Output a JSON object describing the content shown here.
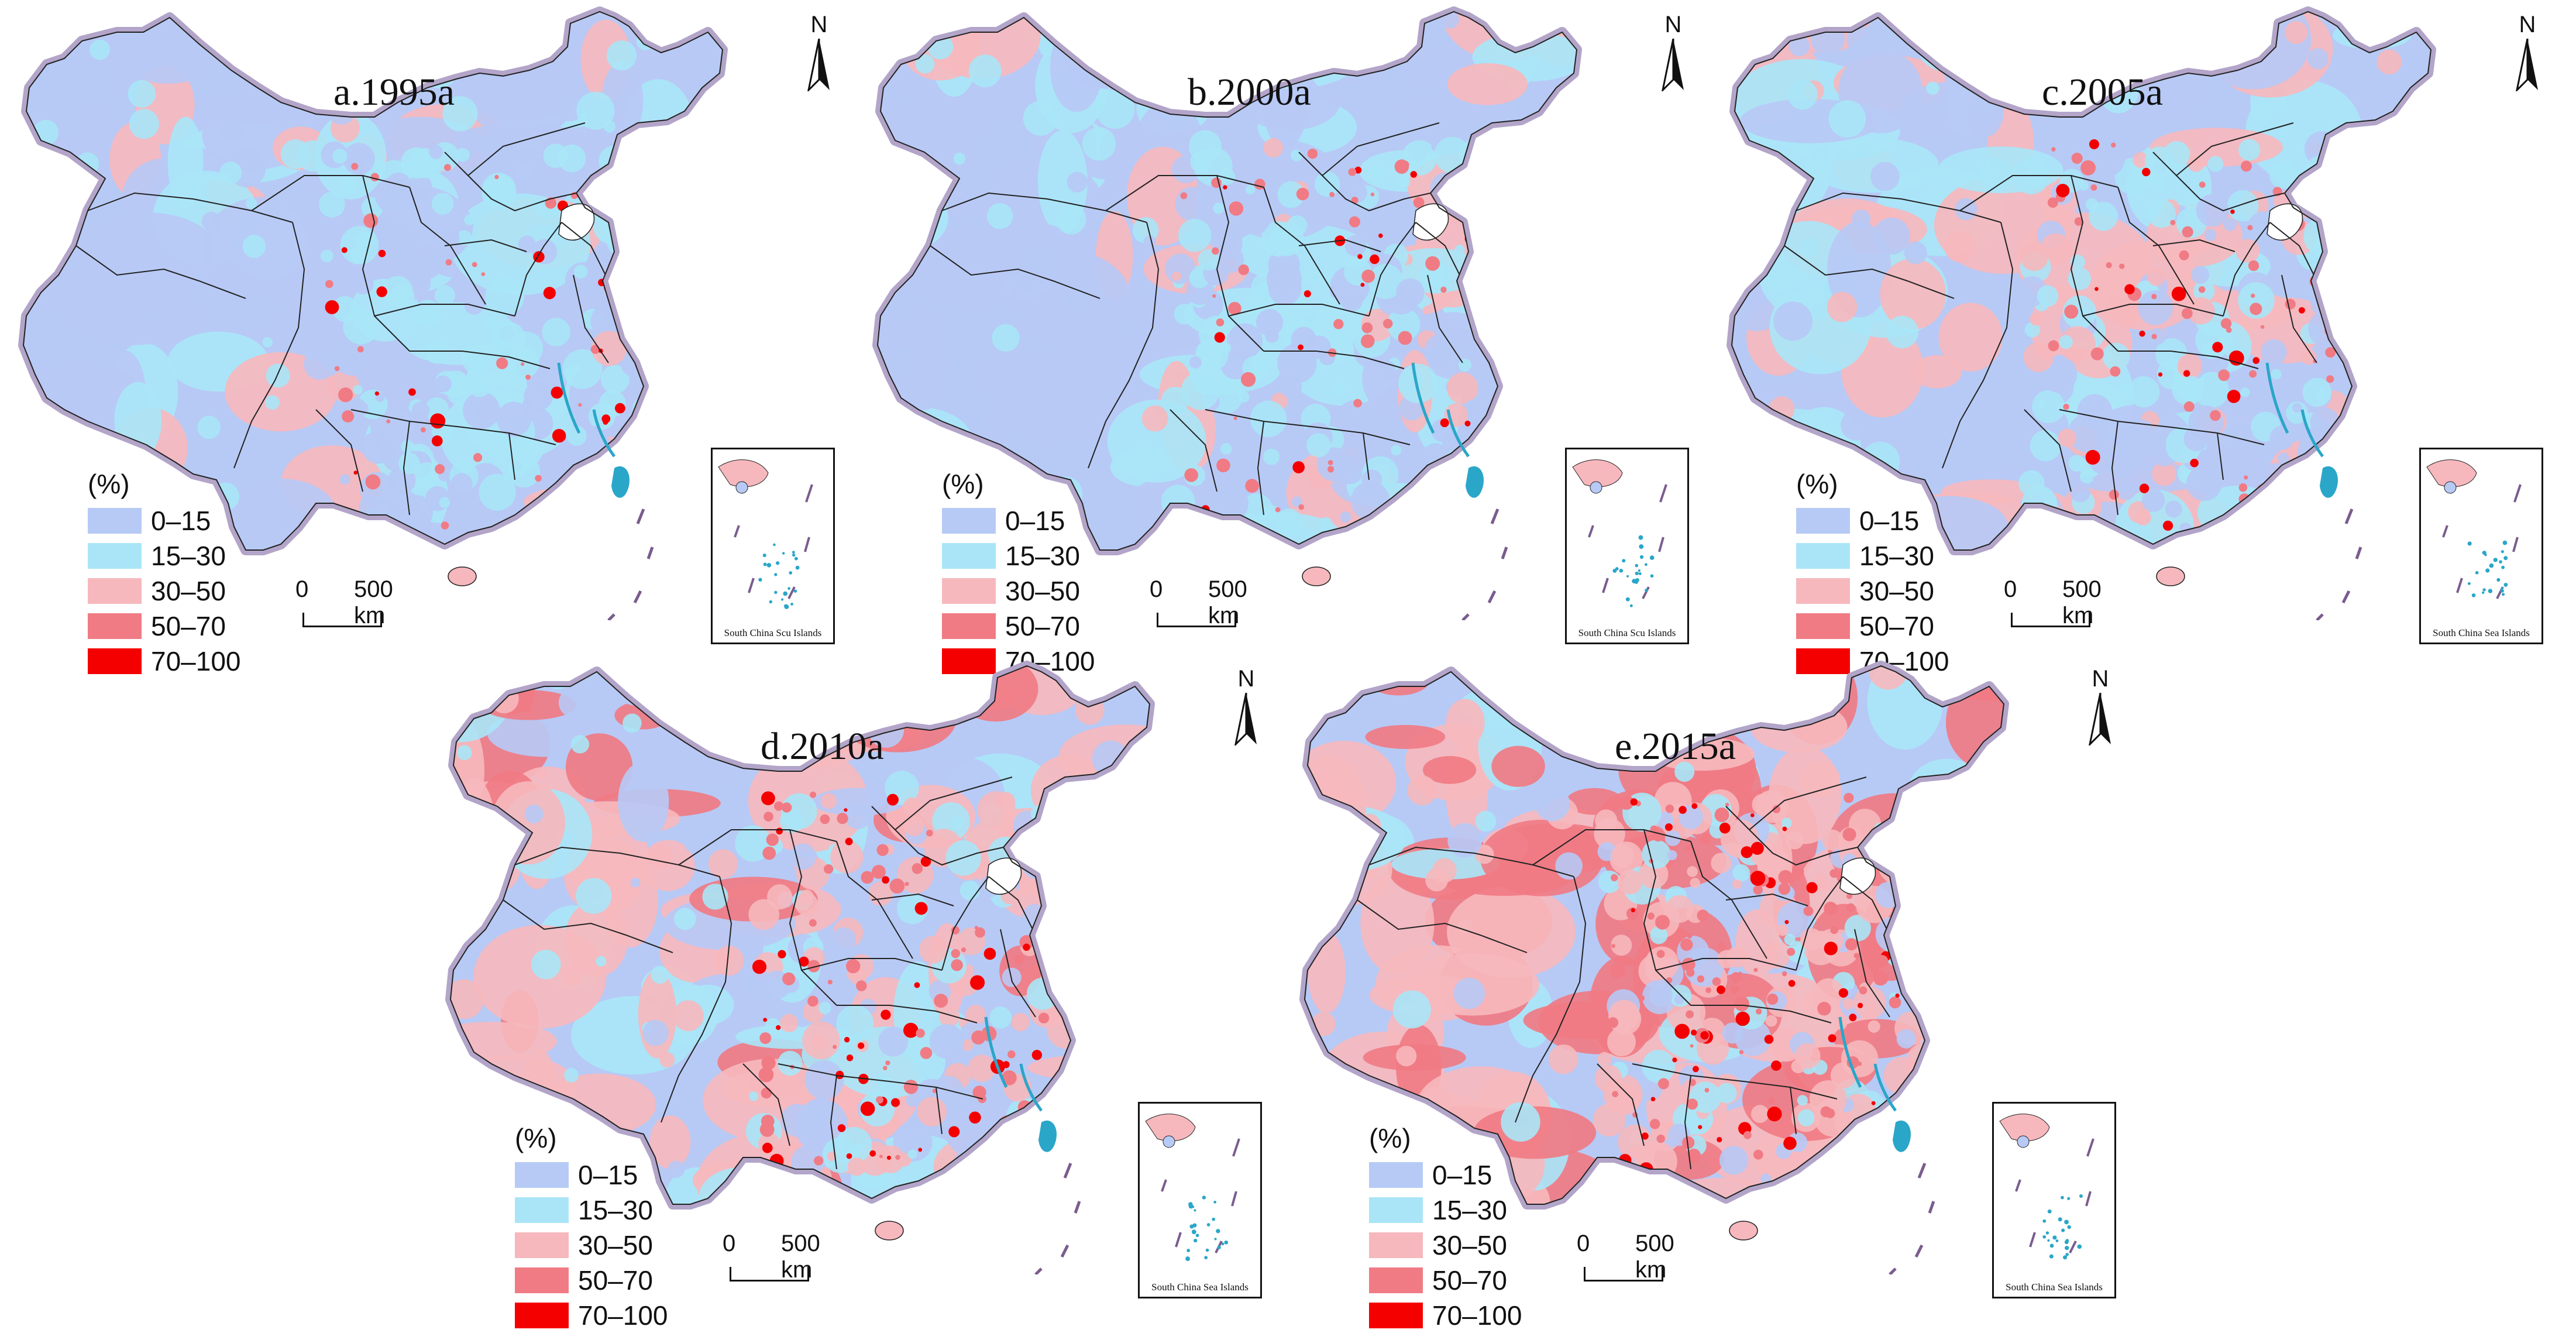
{
  "figure": {
    "panels": [
      {
        "id": "a",
        "title": "a.1995a",
        "inset_caption": "South China Scu Islands",
        "mix": 0.05,
        "reds": 0.02
      },
      {
        "id": "b",
        "title": "b.2000a",
        "inset_caption": "South China Scu Islands",
        "mix": 0.08,
        "reds": 0.03
      },
      {
        "id": "c",
        "title": "c.2005a",
        "inset_caption": "South China Sea Islands",
        "mix": 0.2,
        "reds": 0.06
      },
      {
        "id": "d",
        "title": "d.2010a",
        "inset_caption": "South China Sea Islands",
        "mix": 0.42,
        "reds": 0.12
      },
      {
        "id": "e",
        "title": "e.2015a",
        "inset_caption": "South China Sea Islands",
        "mix": 0.62,
        "reds": 0.18
      }
    ],
    "legend": {
      "unit": "(%)",
      "classes": [
        {
          "label": "0–15",
          "color": "#b7c9f5"
        },
        {
          "label": "15–30",
          "color": "#a9e5f7"
        },
        {
          "label": "30–50",
          "color": "#f6b8bd"
        },
        {
          "label": "50–70",
          "color": "#f07b84"
        },
        {
          "label": "70–100",
          "color": "#f50000"
        }
      ]
    },
    "north_label": "N",
    "scale_zero": "0",
    "scale_distance": "500 km",
    "colors": {
      "border": "#b3a5c9",
      "coast": "#2aa6c9",
      "lines": "#222222"
    }
  }
}
